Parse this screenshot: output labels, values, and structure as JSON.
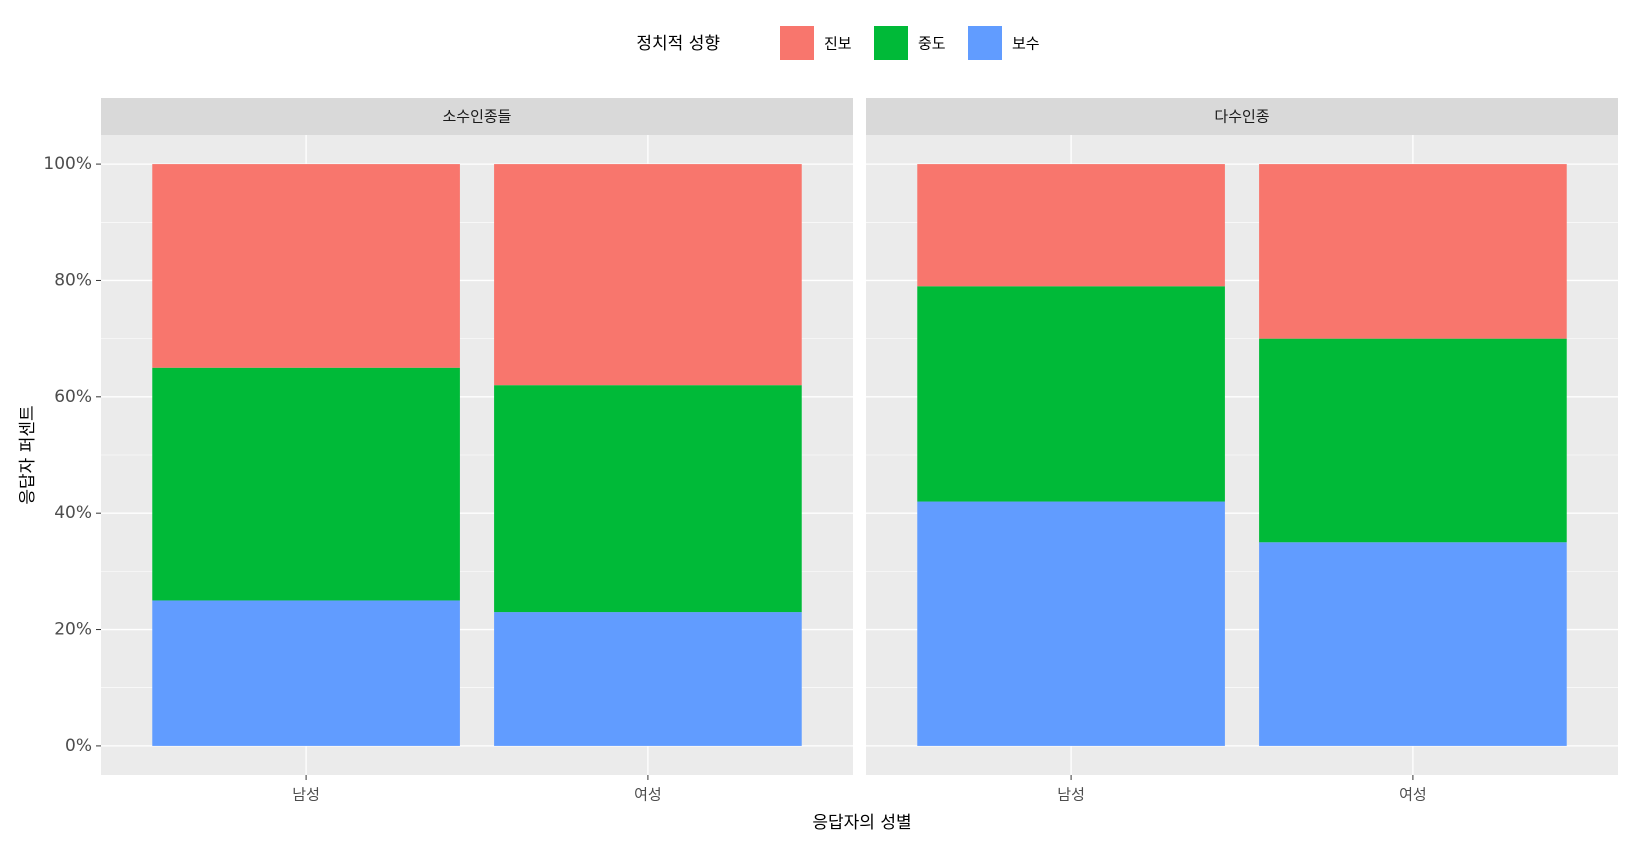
{
  "chart_data": {
    "type": "bar",
    "stacked": true,
    "legend_title": "정치적 성향",
    "legend_position": "top",
    "x_label": "응답자의 성별",
    "y_label": "응답자 퍼센트",
    "categories": [
      "남성",
      "여성"
    ],
    "series": [
      {
        "name": "진보",
        "color": "#f8766d"
      },
      {
        "name": "중도",
        "color": "#00ba38"
      },
      {
        "name": "보수",
        "color": "#619cff"
      }
    ],
    "facets": [
      {
        "label": "소수인종들",
        "values": [
          [
            35,
            38
          ],
          [
            40,
            39
          ],
          [
            25,
            23
          ]
        ]
      },
      {
        "label": "다수인종",
        "values": [
          [
            21,
            30
          ],
          [
            37,
            35
          ],
          [
            42,
            35
          ]
        ]
      }
    ],
    "ylim": [
      -5,
      105
    ],
    "yticks": [
      {
        "value": 0,
        "label": "0%"
      },
      {
        "value": 20,
        "label": "20%"
      },
      {
        "value": 40,
        "label": "40%"
      },
      {
        "value": 60,
        "label": "60%"
      },
      {
        "value": 80,
        "label": "80%"
      },
      {
        "value": 100,
        "label": "100%"
      }
    ],
    "grid": true
  }
}
